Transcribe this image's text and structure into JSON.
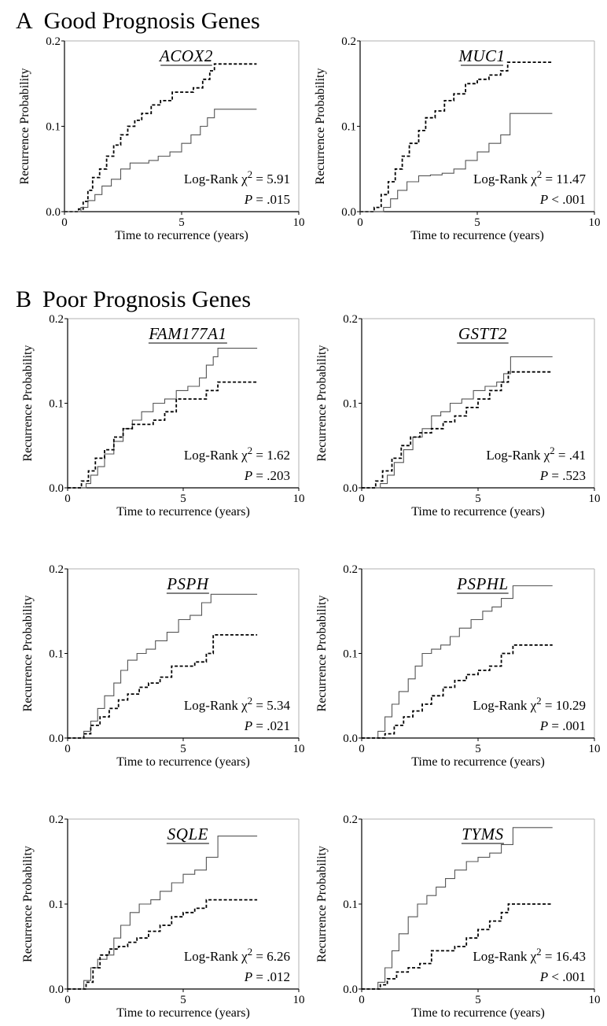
{
  "sections": [
    {
      "letter": "A",
      "title": "Good Prognosis Genes"
    },
    {
      "letter": "B",
      "title": "Poor Prognosis Genes"
    }
  ],
  "common": {
    "ylabel": "Recurrence Probability",
    "xlabel": "Time to recurrence (years)",
    "xticks": [
      "0",
      "5",
      "10"
    ],
    "yticks": [
      "0.0",
      "0.1",
      "0.2"
    ],
    "xlim": [
      0,
      10
    ],
    "ylim": [
      0,
      0.2
    ],
    "stat_prefix": "Log-Rank χ",
    "stat_sup": "2",
    "p_label": "P",
    "solid_color": "#555555",
    "dashed_color": "#000000"
  },
  "chart_data": [
    {
      "type": "line",
      "section": "A",
      "gene": "ACOX2",
      "chi2": "= 5.91",
      "p": "= .015",
      "series": [
        {
          "style": "dashed",
          "x": [
            0,
            0.6,
            0.8,
            1.0,
            1.2,
            1.5,
            1.8,
            2.1,
            2.4,
            2.7,
            3.0,
            3.3,
            3.7,
            4.1,
            4.6,
            5.0,
            5.5,
            5.9,
            6.2,
            6.4,
            8.2
          ],
          "y": [
            0,
            0.003,
            0.012,
            0.025,
            0.04,
            0.05,
            0.065,
            0.078,
            0.09,
            0.1,
            0.107,
            0.115,
            0.125,
            0.13,
            0.14,
            0.14,
            0.145,
            0.155,
            0.165,
            0.173,
            0.173
          ]
        },
        {
          "style": "solid",
          "x": [
            0,
            0.7,
            1.0,
            1.3,
            1.6,
            2.0,
            2.4,
            2.8,
            3.2,
            3.6,
            4.0,
            4.5,
            5.0,
            5.4,
            5.8,
            6.1,
            6.4,
            8.2
          ],
          "y": [
            0,
            0.005,
            0.013,
            0.02,
            0.03,
            0.038,
            0.05,
            0.057,
            0.057,
            0.06,
            0.065,
            0.07,
            0.08,
            0.09,
            0.1,
            0.11,
            0.12,
            0.12
          ]
        }
      ]
    },
    {
      "type": "line",
      "section": "A",
      "gene": "MUC1",
      "chi2": "= 11.47",
      "p": "< .001",
      "series": [
        {
          "style": "dashed",
          "x": [
            0,
            0.6,
            0.9,
            1.2,
            1.5,
            1.8,
            2.1,
            2.5,
            2.8,
            3.2,
            3.6,
            4.0,
            4.5,
            5.0,
            5.5,
            6.0,
            6.3,
            8.2
          ],
          "y": [
            0,
            0.005,
            0.02,
            0.035,
            0.05,
            0.065,
            0.08,
            0.095,
            0.11,
            0.118,
            0.13,
            0.138,
            0.15,
            0.155,
            0.16,
            0.165,
            0.175,
            0.175
          ]
        },
        {
          "style": "solid",
          "x": [
            0,
            1.0,
            1.3,
            1.6,
            2.0,
            2.5,
            3.0,
            3.5,
            4.0,
            4.5,
            5.0,
            5.5,
            6.0,
            6.4,
            8.2
          ],
          "y": [
            0,
            0.005,
            0.015,
            0.025,
            0.035,
            0.042,
            0.043,
            0.045,
            0.05,
            0.06,
            0.07,
            0.08,
            0.09,
            0.115,
            0.115
          ]
        }
      ]
    },
    {
      "type": "line",
      "section": "B",
      "gene": "FAM177A1",
      "chi2": "= 1.62",
      "p": "= .203",
      "series": [
        {
          "style": "solid",
          "x": [
            0,
            0.8,
            1.0,
            1.3,
            1.6,
            2.0,
            2.4,
            2.8,
            3.2,
            3.7,
            4.2,
            4.7,
            5.2,
            5.7,
            6.0,
            6.3,
            6.5,
            8.2
          ],
          "y": [
            0,
            0.005,
            0.015,
            0.025,
            0.04,
            0.055,
            0.07,
            0.08,
            0.09,
            0.1,
            0.105,
            0.115,
            0.12,
            0.13,
            0.145,
            0.155,
            0.165,
            0.165
          ]
        },
        {
          "style": "dashed",
          "x": [
            0,
            0.6,
            0.9,
            1.2,
            1.6,
            2.0,
            2.4,
            2.8,
            3.2,
            3.7,
            4.2,
            4.7,
            5.3,
            6.0,
            6.5,
            8.2
          ],
          "y": [
            0,
            0.008,
            0.02,
            0.035,
            0.045,
            0.06,
            0.07,
            0.075,
            0.075,
            0.08,
            0.09,
            0.105,
            0.105,
            0.115,
            0.125,
            0.125
          ]
        }
      ]
    },
    {
      "type": "line",
      "section": "B",
      "gene": "GSTT2",
      "chi2": "= .41",
      "p": "= .523",
      "series": [
        {
          "style": "solid",
          "x": [
            0,
            0.8,
            1.1,
            1.4,
            1.8,
            2.2,
            2.6,
            3.0,
            3.4,
            3.8,
            4.3,
            4.8,
            5.3,
            5.8,
            6.1,
            6.4,
            8.2
          ],
          "y": [
            0,
            0.005,
            0.015,
            0.03,
            0.045,
            0.06,
            0.07,
            0.085,
            0.09,
            0.1,
            0.105,
            0.115,
            0.12,
            0.125,
            0.135,
            0.155,
            0.155
          ]
        },
        {
          "style": "dashed",
          "x": [
            0,
            0.6,
            0.9,
            1.3,
            1.7,
            2.1,
            2.5,
            3.0,
            3.5,
            4.0,
            4.5,
            5.0,
            5.5,
            6.0,
            6.3,
            8.2
          ],
          "y": [
            0,
            0.008,
            0.02,
            0.035,
            0.05,
            0.06,
            0.065,
            0.07,
            0.078,
            0.085,
            0.095,
            0.105,
            0.115,
            0.125,
            0.137,
            0.137
          ]
        }
      ]
    },
    {
      "type": "line",
      "section": "B",
      "gene": "PSPH",
      "chi2": "= 5.34",
      "p": "= .021",
      "series": [
        {
          "style": "solid",
          "x": [
            0,
            0.7,
            1.0,
            1.3,
            1.6,
            2.0,
            2.3,
            2.6,
            3.0,
            3.4,
            3.8,
            4.3,
            4.8,
            5.3,
            5.8,
            6.2,
            8.2
          ],
          "y": [
            0,
            0.008,
            0.02,
            0.035,
            0.05,
            0.065,
            0.08,
            0.092,
            0.1,
            0.105,
            0.115,
            0.125,
            0.14,
            0.145,
            0.16,
            0.17,
            0.17
          ]
        },
        {
          "style": "dashed",
          "x": [
            0,
            0.7,
            1.0,
            1.4,
            1.8,
            2.2,
            2.6,
            3.1,
            3.5,
            4.0,
            4.5,
            5.0,
            5.5,
            6.0,
            6.3,
            8.2
          ],
          "y": [
            0,
            0.005,
            0.015,
            0.025,
            0.035,
            0.045,
            0.052,
            0.06,
            0.065,
            0.072,
            0.085,
            0.085,
            0.09,
            0.1,
            0.122,
            0.122
          ]
        }
      ]
    },
    {
      "type": "line",
      "section": "B",
      "gene": "PSPHL",
      "chi2": "= 10.29",
      "p": "= .001",
      "series": [
        {
          "style": "solid",
          "x": [
            0,
            0.7,
            1.0,
            1.3,
            1.6,
            2.0,
            2.3,
            2.6,
            3.0,
            3.4,
            3.8,
            4.2,
            4.7,
            5.2,
            5.6,
            6.0,
            6.5,
            8.2
          ],
          "y": [
            0,
            0.008,
            0.025,
            0.04,
            0.055,
            0.07,
            0.085,
            0.1,
            0.105,
            0.11,
            0.12,
            0.13,
            0.14,
            0.15,
            0.155,
            0.165,
            0.18,
            0.18
          ]
        },
        {
          "style": "dashed",
          "x": [
            0,
            1.0,
            1.4,
            1.8,
            2.2,
            2.6,
            3.0,
            3.5,
            4.0,
            4.5,
            5.0,
            5.5,
            6.0,
            6.5,
            8.2
          ],
          "y": [
            0,
            0.005,
            0.015,
            0.025,
            0.032,
            0.04,
            0.05,
            0.06,
            0.068,
            0.075,
            0.08,
            0.085,
            0.1,
            0.11,
            0.11
          ]
        }
      ]
    },
    {
      "type": "line",
      "section": "B",
      "gene": "SQLE",
      "chi2": "= 6.26",
      "p": "= .012",
      "series": [
        {
          "style": "solid",
          "x": [
            0,
            0.7,
            1.0,
            1.3,
            1.7,
            2.0,
            2.3,
            2.7,
            3.1,
            3.6,
            4.0,
            4.5,
            5.0,
            5.5,
            6.0,
            6.5,
            8.2
          ],
          "y": [
            0,
            0.01,
            0.025,
            0.035,
            0.04,
            0.06,
            0.075,
            0.09,
            0.1,
            0.105,
            0.115,
            0.125,
            0.135,
            0.14,
            0.155,
            0.18,
            0.18
          ]
        },
        {
          "style": "dashed",
          "x": [
            0,
            0.8,
            1.1,
            1.4,
            1.8,
            2.2,
            2.6,
            3.0,
            3.5,
            4.0,
            4.5,
            5.0,
            5.5,
            6.0,
            8.2
          ],
          "y": [
            0,
            0.008,
            0.025,
            0.04,
            0.047,
            0.05,
            0.055,
            0.06,
            0.068,
            0.075,
            0.085,
            0.09,
            0.095,
            0.105,
            0.105
          ]
        }
      ]
    },
    {
      "type": "line",
      "section": "B",
      "gene": "TYMS",
      "chi2": "= 16.43",
      "p": "< .001",
      "series": [
        {
          "style": "solid",
          "x": [
            0,
            0.7,
            1.0,
            1.3,
            1.6,
            2.0,
            2.4,
            2.8,
            3.2,
            3.6,
            4.0,
            4.5,
            5.0,
            5.5,
            6.0,
            6.5,
            8.2
          ],
          "y": [
            0,
            0.008,
            0.025,
            0.045,
            0.065,
            0.085,
            0.1,
            0.11,
            0.12,
            0.13,
            0.14,
            0.15,
            0.155,
            0.16,
            0.17,
            0.19,
            0.19
          ]
        },
        {
          "style": "dashed",
          "x": [
            0,
            0.8,
            1.1,
            1.5,
            2.0,
            2.5,
            3.0,
            3.5,
            4.0,
            4.5,
            5.0,
            5.5,
            6.0,
            6.3,
            8.2
          ],
          "y": [
            0,
            0.005,
            0.012,
            0.02,
            0.025,
            0.03,
            0.045,
            0.045,
            0.05,
            0.06,
            0.07,
            0.08,
            0.09,
            0.1,
            0.1
          ]
        }
      ]
    }
  ]
}
